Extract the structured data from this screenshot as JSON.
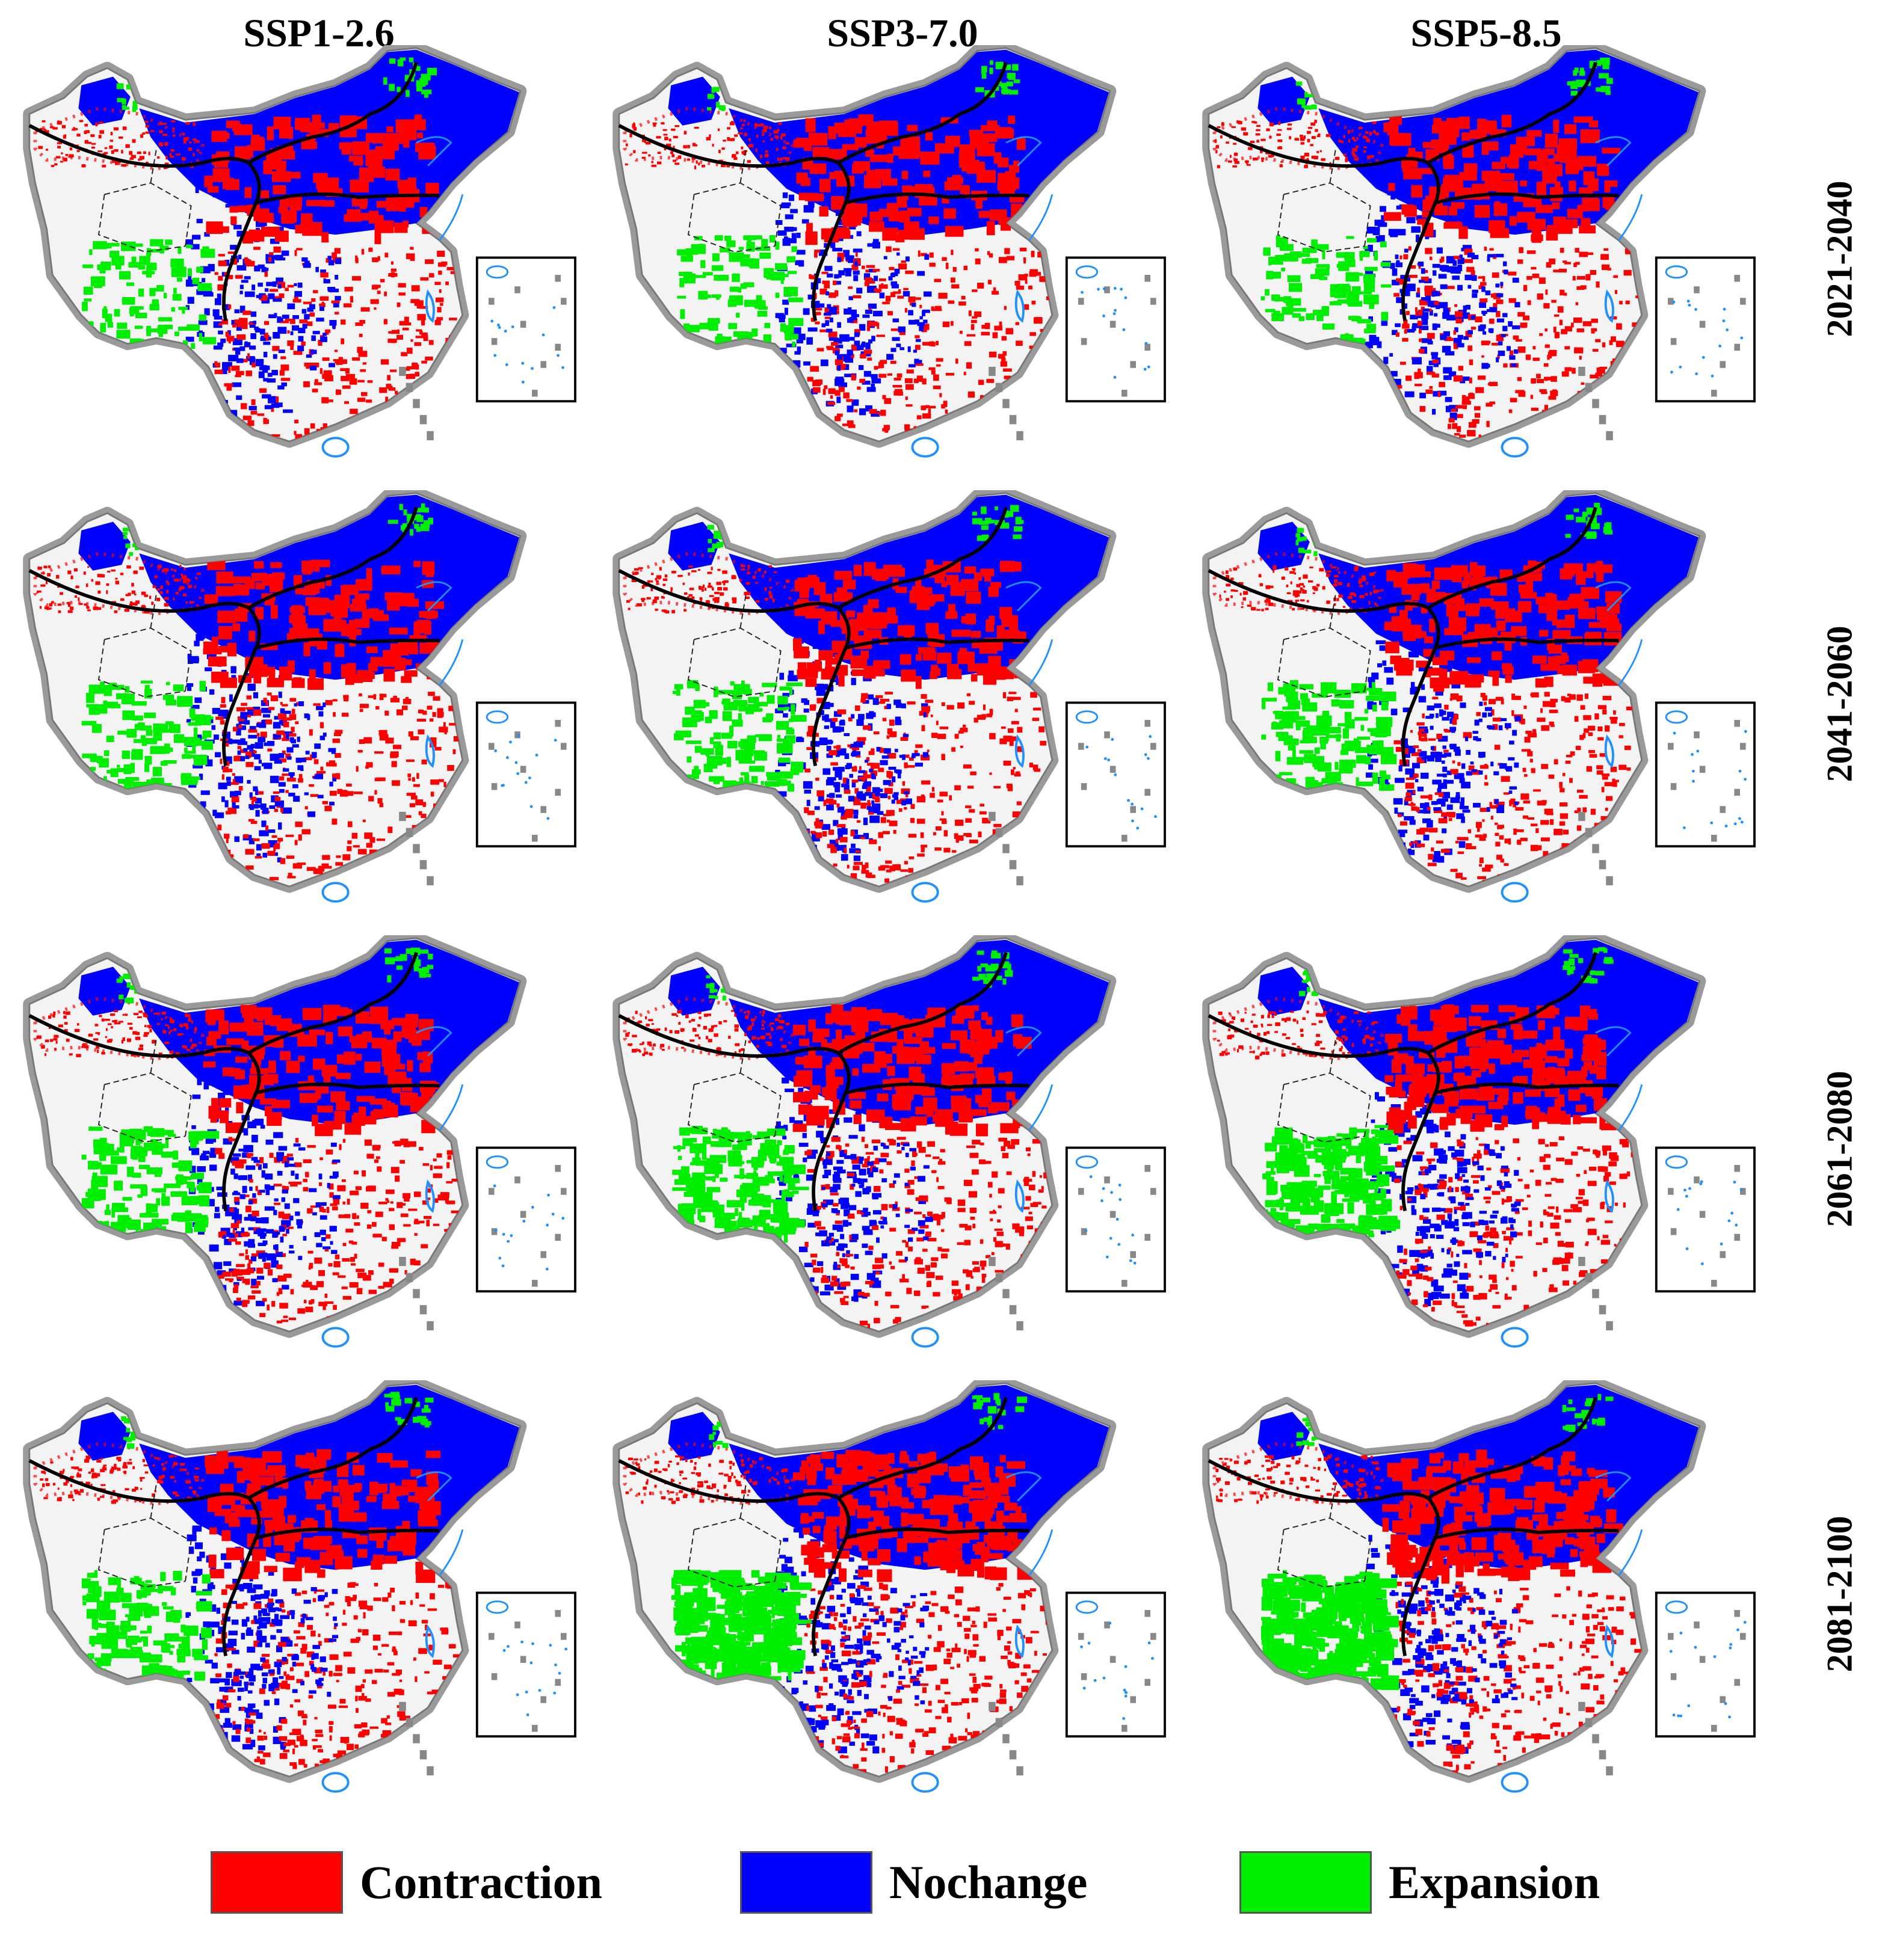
{
  "columns": [
    "SSP1-2.6",
    "SSP3-7.0",
    "SSP5-8.5"
  ],
  "rows": [
    "2021-2040",
    "2041-2060",
    "2061-2080",
    "2081-2100"
  ],
  "legend": [
    {
      "label": "Contraction",
      "color": "#ff0000"
    },
    {
      "label": "Nochange",
      "color": "#0000ff"
    },
    {
      "label": "Expansion",
      "color": "#00ee00"
    }
  ],
  "colors": {
    "background_region": "#f3f3f3",
    "border_halo": "#9a9a9a",
    "water": "#1e90ff",
    "boundary": "#000000"
  },
  "panels": [
    [
      {
        "contraction": 0.3,
        "expansion": 0.15
      },
      {
        "contraction": 0.32,
        "expansion": 0.15
      },
      {
        "contraction": 0.35,
        "expansion": 0.15
      }
    ],
    [
      {
        "contraction": 0.33,
        "expansion": 0.2
      },
      {
        "contraction": 0.38,
        "expansion": 0.22
      },
      {
        "contraction": 0.42,
        "expansion": 0.24
      }
    ],
    [
      {
        "contraction": 0.36,
        "expansion": 0.26
      },
      {
        "contraction": 0.45,
        "expansion": 0.34
      },
      {
        "contraction": 0.5,
        "expansion": 0.4
      }
    ],
    [
      {
        "contraction": 0.38,
        "expansion": 0.24
      },
      {
        "contraction": 0.6,
        "expansion": 0.55
      },
      {
        "contraction": 0.62,
        "expansion": 0.6
      }
    ]
  ]
}
